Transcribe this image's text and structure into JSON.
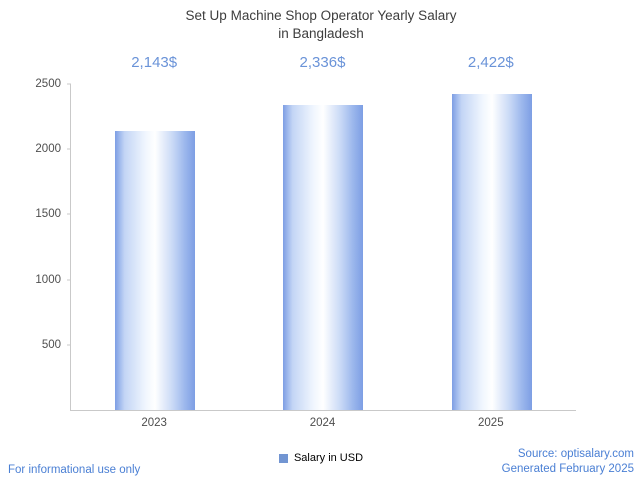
{
  "title": {
    "line1": "Set Up Machine Shop Operator Yearly Salary",
    "line2": "in Bangladesh"
  },
  "chart_data": {
    "type": "bar",
    "title": "Set Up Machine Shop Operator Yearly Salary in Bangladesh",
    "categories": [
      "2023",
      "2024",
      "2025"
    ],
    "values": [
      2143,
      2336,
      2422
    ],
    "value_labels": [
      "2,143$",
      "2,336$",
      "2,422$"
    ],
    "series": [
      {
        "name": "Salary in USD",
        "values": [
          2143,
          2336,
          2422
        ]
      }
    ],
    "xlabel": "",
    "ylabel": "",
    "ylim": [
      0,
      2500
    ],
    "yticks": [
      500,
      1000,
      1500,
      2000,
      2500
    ],
    "grid": false,
    "legend_position": "bottom"
  },
  "legend": {
    "label": "Salary in USD"
  },
  "footer": {
    "left": "For informational use only",
    "source": "Source: optisalary.com",
    "generated": "Generated February 2025"
  },
  "colors": {
    "accent_blue": "#6a93d8",
    "footer_blue": "#4a7fd4",
    "axis_gray": "#c9c9c9",
    "bar_edge": "#7d9ee4",
    "bar_mid": "#ffffff",
    "legend_blue": "#7295d2",
    "title_gray": "#3d3d3d"
  }
}
